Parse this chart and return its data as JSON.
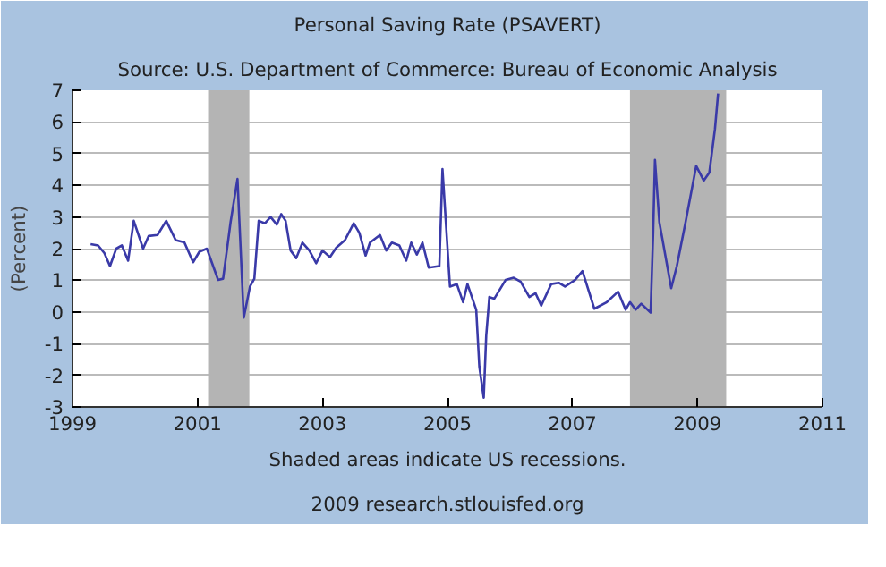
{
  "chart_data": {
    "type": "line",
    "title": "Personal Saving Rate (PSAVERT)",
    "subtitle": "Source: U.S. Department of Commerce: Bureau of Economic Analysis",
    "ylabel": "(Percent)",
    "annotations": [
      "Shaded areas indicate US recessions.",
      "2009 research.stlouisfed.org"
    ],
    "xlim": [
      1999,
      2011
    ],
    "xticks": [
      1999,
      2001,
      2003,
      2005,
      2007,
      2009,
      2011
    ],
    "ylim": [
      -3,
      7
    ],
    "yticks": [
      -3,
      -2,
      -1,
      0,
      1,
      2,
      3,
      4,
      5,
      6,
      7
    ],
    "grid": "y",
    "bands": [
      {
        "axis": "x",
        "from": 2001.17,
        "to": 2001.83,
        "color": "#b4b4b4"
      },
      {
        "axis": "x",
        "from": 2007.92,
        "to": 2009.46,
        "color": "#b4b4b4"
      }
    ],
    "series": [
      {
        "color": "#3a3aa8",
        "x": [
          1999.29,
          1999.41,
          1999.51,
          1999.6,
          1999.7,
          1999.79,
          1999.89,
          1999.98,
          2000.13,
          2000.22,
          2000.36,
          2000.5,
          2000.65,
          2000.79,
          2000.93,
          2001.03,
          2001.15,
          2001.33,
          2001.41,
          2001.53,
          2001.64,
          2001.74,
          2001.84,
          2001.91,
          2001.98,
          2002.08,
          2002.17,
          2002.27,
          2002.34,
          2002.41,
          2002.49,
          2002.58,
          2002.68,
          2002.79,
          2002.9,
          2003.0,
          2003.12,
          2003.22,
          2003.36,
          2003.5,
          2003.59,
          2003.69,
          2003.76,
          2003.92,
          2004.02,
          2004.11,
          2004.23,
          2004.34,
          2004.42,
          2004.51,
          2004.6,
          2004.7,
          2004.87,
          2004.92,
          2005.04,
          2005.15,
          2005.25,
          2005.32,
          2005.46,
          2005.51,
          2005.58,
          2005.62,
          2005.67,
          2005.75,
          2005.93,
          2006.06,
          2006.17,
          2006.31,
          2006.41,
          2006.5,
          2006.66,
          2006.78,
          2006.88,
          2007.04,
          2007.16,
          2007.35,
          2007.55,
          2007.73,
          2007.85,
          2007.92,
          2008.01,
          2008.1,
          2008.25,
          2008.29,
          2008.32,
          2008.39,
          2008.58,
          2008.67,
          2008.81,
          2008.98,
          2009.1,
          2009.19,
          2009.28,
          2009.33
        ],
        "values": [
          2.14,
          2.1,
          1.86,
          1.45,
          2.0,
          2.1,
          1.62,
          2.88,
          2.0,
          2.4,
          2.43,
          2.88,
          2.27,
          2.2,
          1.57,
          1.9,
          2.0,
          1.01,
          1.05,
          2.84,
          4.2,
          -0.18,
          0.8,
          1.05,
          2.88,
          2.8,
          3.0,
          2.76,
          3.09,
          2.88,
          1.94,
          1.7,
          2.19,
          1.94,
          1.54,
          1.94,
          1.73,
          2.03,
          2.27,
          2.8,
          2.5,
          1.78,
          2.19,
          2.43,
          1.94,
          2.19,
          2.1,
          1.62,
          2.19,
          1.81,
          2.19,
          1.4,
          1.45,
          4.51,
          0.8,
          0.88,
          0.31,
          0.88,
          0.07,
          -1.73,
          -2.71,
          -0.75,
          0.47,
          0.42,
          1.01,
          1.08,
          0.96,
          0.47,
          0.59,
          0.2,
          0.88,
          0.92,
          0.8,
          1.01,
          1.29,
          0.1,
          0.31,
          0.64,
          0.07,
          0.31,
          0.07,
          0.26,
          -0.02,
          2.43,
          4.8,
          2.84,
          0.75,
          1.45,
          2.84,
          4.61,
          4.15,
          4.4,
          5.78,
          6.9
        ]
      }
    ]
  }
}
